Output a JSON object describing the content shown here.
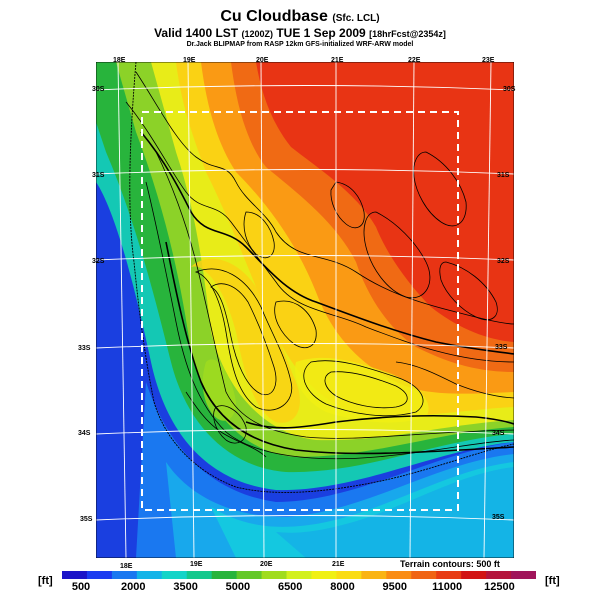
{
  "title": {
    "main": "Cu Cloudbase",
    "main_small": "(Sfc. LCL)",
    "valid_line": "Valid 1400 LST",
    "valid_small_1": "(1200Z)",
    "valid_date": "TUE 1 Sep 2009",
    "valid_small_2": "[18hrFcst@2354z]",
    "source_line": "Dr.Jack BLIPMAP from RASP 12km GFS-initialized WRF-ARW model"
  },
  "map": {
    "lon_labels_top": [
      "18E",
      "19E",
      "20E",
      "21E",
      "22E",
      "23E"
    ],
    "lon_labels_bottom": [
      "18E",
      "19E",
      "20E",
      "21E"
    ],
    "lat_labels_left": [
      "30S",
      "31S",
      "32S",
      "33S",
      "34S",
      "35S"
    ],
    "lat_labels_right": [
      "30S",
      "31S",
      "32S",
      "33S",
      "34S",
      "35S"
    ],
    "terrain_note": "Terrain contours: 500 ft",
    "colors": {
      "ocean_deep": "#1a3fe0",
      "land_high": "#ee2a10",
      "grid": "#ffffff",
      "contour": "#000000"
    }
  },
  "colorbar": {
    "unit_left": "[ft]",
    "unit_right": "[ft]",
    "tick_labels": [
      "500",
      "2000",
      "3500",
      "5000",
      "6500",
      "8000",
      "9500",
      "11000",
      "12500"
    ],
    "colors": [
      "#1c14c8",
      "#1c3cf0",
      "#1a78f0",
      "#14b4e8",
      "#14d4c8",
      "#14c88c",
      "#28b43c",
      "#64c828",
      "#a0dc1e",
      "#d2f01e",
      "#f0f014",
      "#fadc14",
      "#fab414",
      "#fa8c14",
      "#f06414",
      "#e83c14",
      "#d21414",
      "#b4143c",
      "#a0145a"
    ]
  }
}
